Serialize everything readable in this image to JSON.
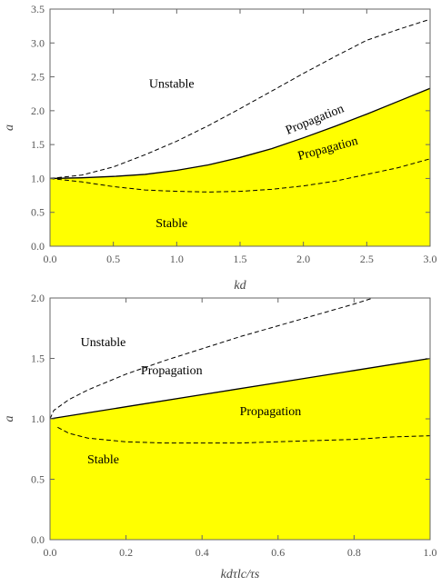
{
  "chart_data": [
    {
      "type": "area",
      "xlabel": "kd",
      "ylabel": "a",
      "xlim": [
        0,
        3
      ],
      "ylim": [
        0,
        3.5
      ],
      "xticks": [
        "0.0",
        "0.5",
        "1.0",
        "1.5",
        "2.0",
        "2.5",
        "3.0"
      ],
      "yticks": [
        "0.0",
        "0.5",
        "1.0",
        "1.5",
        "2.0",
        "2.5",
        "3.0",
        "3.5"
      ],
      "fill_color": "#ffff00",
      "grid": false,
      "series": [
        {
          "style": "solid",
          "x": [
            0,
            0.25,
            0.5,
            0.75,
            1.0,
            1.25,
            1.5,
            1.75,
            2.0,
            2.25,
            2.5,
            2.75,
            3.0
          ],
          "values": [
            1.0,
            1.01,
            1.03,
            1.06,
            1.12,
            1.2,
            1.31,
            1.44,
            1.6,
            1.77,
            1.95,
            2.14,
            2.33
          ]
        },
        {
          "style": "dashed",
          "x": [
            0,
            0.25,
            0.5,
            0.75,
            1.0,
            1.25,
            1.5,
            1.75,
            2.0,
            2.25,
            2.5,
            2.75,
            3.0
          ],
          "values": [
            1.0,
            1.05,
            1.17,
            1.35,
            1.55,
            1.78,
            2.03,
            2.29,
            2.55,
            2.8,
            3.04,
            3.2,
            3.35
          ]
        },
        {
          "style": "dashed",
          "x": [
            0,
            0.25,
            0.5,
            0.75,
            1.0,
            1.25,
            1.5,
            1.75,
            2.0,
            2.25,
            2.5,
            2.75,
            3.0
          ],
          "values": [
            1.0,
            0.95,
            0.88,
            0.83,
            0.81,
            0.8,
            0.81,
            0.84,
            0.89,
            0.96,
            1.06,
            1.16,
            1.29
          ]
        }
      ],
      "annotations": [
        {
          "text": "Unstable",
          "x": 0.96,
          "y": 2.34,
          "rotate": 0
        },
        {
          "text": "Propagation",
          "x": 2.1,
          "y": 1.82,
          "rotate": -22
        },
        {
          "text": "Propagation",
          "x": 2.2,
          "y": 1.39,
          "rotate": -15
        },
        {
          "text": "Stable",
          "x": 0.96,
          "y": 0.28,
          "rotate": 0
        }
      ]
    },
    {
      "type": "area",
      "xlabel": "kdτlc/τs",
      "ylabel": "a",
      "xlim": [
        0,
        1
      ],
      "ylim": [
        0,
        2
      ],
      "xticks": [
        "0.0",
        "0.2",
        "0.4",
        "0.6",
        "0.8",
        "1.0"
      ],
      "yticks": [
        "0.0",
        "0.5",
        "1.0",
        "1.5",
        "2.0"
      ],
      "fill_color": "#ffff00",
      "grid": false,
      "series": [
        {
          "style": "solid",
          "x": [
            0,
            0.2,
            0.4,
            0.6,
            0.8,
            1.0
          ],
          "values": [
            1.0,
            1.1,
            1.2,
            1.3,
            1.4,
            1.5
          ]
        },
        {
          "style": "dashed",
          "x": [
            0,
            0.01,
            0.05,
            0.1,
            0.2,
            0.3,
            0.4,
            0.5,
            0.6,
            0.7,
            0.8,
            0.85
          ],
          "values": [
            1.0,
            1.07,
            1.16,
            1.24,
            1.37,
            1.48,
            1.58,
            1.68,
            1.77,
            1.86,
            1.95,
            2.0
          ]
        },
        {
          "style": "dashed",
          "x": [
            0.02,
            0.05,
            0.1,
            0.2,
            0.3,
            0.4,
            0.5,
            0.6,
            0.7,
            0.8,
            0.9,
            1.0
          ],
          "values": [
            0.93,
            0.88,
            0.84,
            0.81,
            0.8,
            0.8,
            0.8,
            0.81,
            0.82,
            0.83,
            0.85,
            0.86
          ]
        }
      ],
      "annotations": [
        {
          "text": "Unstable",
          "x": 0.14,
          "y": 1.6,
          "rotate": 0
        },
        {
          "text": "Propagation",
          "x": 0.32,
          "y": 1.37,
          "rotate": 0
        },
        {
          "text": "Propagation",
          "x": 0.58,
          "y": 1.03,
          "rotate": 0
        },
        {
          "text": "Stable",
          "x": 0.14,
          "y": 0.63,
          "rotate": 0
        }
      ]
    }
  ]
}
